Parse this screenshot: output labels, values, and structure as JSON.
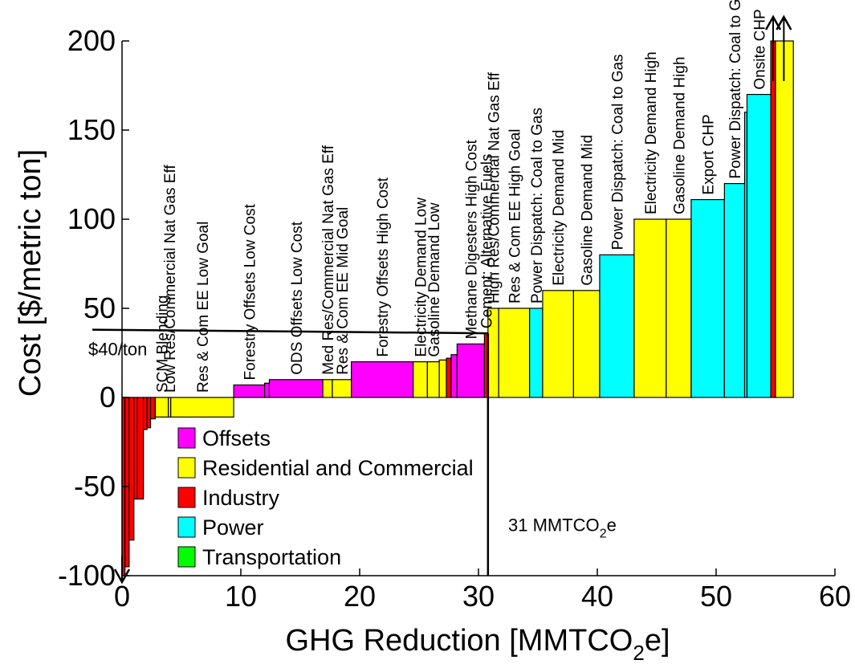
{
  "chart_data": {
    "type": "bar",
    "title": "",
    "xlabel": "GHG Reduction [MMTCO",
    "xlabel_sub": "2",
    "xlabel_tail": "e]",
    "ylabel": "Cost [$/metric ton]",
    "xlim": [
      0,
      60
    ],
    "ylim": [
      -100,
      200
    ],
    "xticks": [
      "0",
      "10",
      "20",
      "30",
      "40",
      "50",
      "60"
    ],
    "yticks": [
      "-100",
      "-50",
      "0",
      "50",
      "100",
      "150",
      "200"
    ],
    "grid": false,
    "colors": {
      "Offsets": "#ff00ff",
      "Residential and Commercial": "#ffff00",
      "Industry": "#ff0000",
      "Power": "#00ffff",
      "Transportation": "#00ff00"
    },
    "legend": {
      "placement": "lower-left",
      "entries": [
        "Offsets",
        "Residential and Commercial",
        "Industry",
        "Power",
        "Transportation"
      ]
    },
    "bars": [
      {
        "x0": 0.0,
        "x1": 0.25,
        "cost": -100,
        "sector": "Industry",
        "label": ""
      },
      {
        "x0": 0.25,
        "x1": 0.6,
        "cost": -95,
        "sector": "Industry",
        "label": ""
      },
      {
        "x0": 0.6,
        "x1": 1.0,
        "cost": -80,
        "sector": "Industry",
        "label": ""
      },
      {
        "x0": 1.0,
        "x1": 1.3,
        "cost": -57,
        "sector": "Industry",
        "label": ""
      },
      {
        "x0": 1.3,
        "x1": 1.8,
        "cost": -57,
        "sector": "Industry",
        "label": ""
      },
      {
        "x0": 1.8,
        "x1": 2.1,
        "cost": -18,
        "sector": "Industry",
        "label": ""
      },
      {
        "x0": 2.1,
        "x1": 2.4,
        "cost": -17,
        "sector": "Industry",
        "label": ""
      },
      {
        "x0": 2.4,
        "x1": 2.8,
        "cost": -12,
        "sector": "Industry",
        "label": ""
      },
      {
        "x0": 2.8,
        "x1": 3.9,
        "cost": -11,
        "sector": "Residential and Commercial",
        "label": "SCM Blending"
      },
      {
        "x0": 3.9,
        "x1": 4.1,
        "cost": -11,
        "sector": "Residential and Commercial",
        "label": "Low Res/Commercial Nat Gas Eff"
      },
      {
        "x0": 4.1,
        "x1": 9.4,
        "cost": -11,
        "sector": "Residential and Commercial",
        "label": "Res & Com EE Low Goal"
      },
      {
        "x0": 9.4,
        "x1": 12.0,
        "cost": 7,
        "sector": "Offsets",
        "label": "Forestry Offsets Low Cost"
      },
      {
        "x0": 12.0,
        "x1": 12.4,
        "cost": 8,
        "sector": "Offsets",
        "label": ""
      },
      {
        "x0": 12.4,
        "x1": 16.9,
        "cost": 10,
        "sector": "Offsets",
        "label": "ODS Offsets Low Cost"
      },
      {
        "x0": 16.9,
        "x1": 17.7,
        "cost": 10,
        "sector": "Residential and Commercial",
        "label": "Med Res/Commercial Nat Gas Eff"
      },
      {
        "x0": 17.7,
        "x1": 19.3,
        "cost": 10,
        "sector": "Residential and Commercial",
        "label": "Res & Com EE Mid Goal"
      },
      {
        "x0": 19.3,
        "x1": 24.5,
        "cost": 20,
        "sector": "Offsets",
        "label": "Forestry Offsets High Cost"
      },
      {
        "x0": 24.5,
        "x1": 25.7,
        "cost": 20,
        "sector": "Residential and Commercial",
        "label": "Electricity Demand Low"
      },
      {
        "x0": 25.7,
        "x1": 26.7,
        "cost": 20,
        "sector": "Residential and Commercial",
        "label": "Gasoline Demand Low"
      },
      {
        "x0": 26.7,
        "x1": 27.3,
        "cost": 21,
        "sector": "Residential and Commercial",
        "label": ""
      },
      {
        "x0": 27.3,
        "x1": 27.7,
        "cost": 22,
        "sector": "Industry",
        "label": ""
      },
      {
        "x0": 27.7,
        "x1": 28.2,
        "cost": 24,
        "sector": "Offsets",
        "label": ""
      },
      {
        "x0": 28.2,
        "x1": 30.5,
        "cost": 30,
        "sector": "Offsets",
        "label": "Methane Digesters High Cost"
      },
      {
        "x0": 30.5,
        "x1": 30.8,
        "cost": 36,
        "sector": "Industry",
        "label": "Cement: Alternative Fuels"
      },
      {
        "x0": 30.8,
        "x1": 31.7,
        "cost": 50,
        "sector": "Residential and Commercial",
        "label": "High Res/Commercial Nat Gas Eff"
      },
      {
        "x0": 31.7,
        "x1": 34.3,
        "cost": 50,
        "sector": "Residential and Commercial",
        "label": "Res & Com EE High Goal"
      },
      {
        "x0": 34.3,
        "x1": 35.4,
        "cost": 50,
        "sector": "Power",
        "label": "Power Dispatch: Coal to Gas"
      },
      {
        "x0": 35.4,
        "x1": 38.0,
        "cost": 60,
        "sector": "Residential and Commercial",
        "label": "Electricity Demand Mid"
      },
      {
        "x0": 38.0,
        "x1": 40.2,
        "cost": 60,
        "sector": "Residential and Commercial",
        "label": "Gasoline Demand Mid"
      },
      {
        "x0": 40.2,
        "x1": 43.1,
        "cost": 80,
        "sector": "Power",
        "label": "Power Dispatch: Coal to Gas"
      },
      {
        "x0": 43.1,
        "x1": 45.8,
        "cost": 100,
        "sector": "Residential and Commercial",
        "label": "Electricity Demand High"
      },
      {
        "x0": 45.8,
        "x1": 47.9,
        "cost": 100,
        "sector": "Residential and Commercial",
        "label": "Gasoline Demand High"
      },
      {
        "x0": 47.9,
        "x1": 50.7,
        "cost": 111,
        "sector": "Power",
        "label": "Export CHP"
      },
      {
        "x0": 50.7,
        "x1": 52.4,
        "cost": 120,
        "sector": "Power",
        "label": "Power Dispatch: Coal to Gas"
      },
      {
        "x0": 52.4,
        "x1": 52.6,
        "cost": 160,
        "sector": "Power",
        "label": ""
      },
      {
        "x0": 52.6,
        "x1": 54.6,
        "cost": 170,
        "sector": "Power",
        "label": "Onsite CHP"
      },
      {
        "x0": 54.6,
        "x1": 55.0,
        "cost": 200,
        "sector": "Industry",
        "label": ""
      },
      {
        "x0": 55.0,
        "x1": 56.5,
        "cost": 200,
        "sector": "Residential and Commercial",
        "label": ""
      }
    ],
    "annotations": {
      "price_text": "$40/ton",
      "price_line": {
        "x0": -2.5,
        "y0": 38,
        "x1": 30.8,
        "y1": 36
      },
      "target_line_x": 30.8,
      "target_text": "31 MMTCO",
      "target_sub": "2",
      "target_tail": "e",
      "target_text_x": 32.5,
      "target_text_y": -75,
      "arrows": [
        {
          "x": 0.0,
          "dir": "down"
        },
        {
          "x": 54.8,
          "dir": "up"
        },
        {
          "x": 55.7,
          "dir": "up"
        }
      ]
    }
  }
}
